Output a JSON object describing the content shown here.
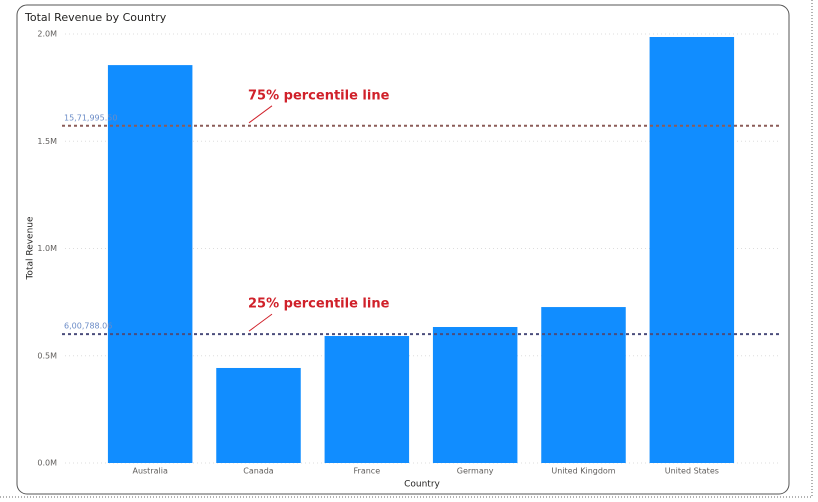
{
  "chart_data": {
    "type": "bar",
    "title": "Total Revenue by Country",
    "x_label": "Country",
    "y_label": "Total Revenue",
    "categories": [
      "Australia",
      "Canada",
      "France",
      "Germany",
      "United Kingdom",
      "United States"
    ],
    "values": [
      1855000,
      443000,
      592000,
      634000,
      727000,
      1986000
    ],
    "color": "#118dff",
    "ylim": [
      0,
      2000000
    ],
    "yticks": [
      {
        "value": 0,
        "label": "0.0M"
      },
      {
        "value": 500000,
        "label": "0.5M"
      },
      {
        "value": 1000000,
        "label": "1.0M"
      },
      {
        "value": 1500000,
        "label": "1.5M"
      },
      {
        "value": 2000000,
        "label": "2.0M"
      }
    ],
    "grid": true,
    "reference_lines": [
      {
        "name": "75% percentile line",
        "value": 1571995.5,
        "value_label": "15,71,995.50",
        "color": "#8b5c58"
      },
      {
        "name": "25% percentile line",
        "value": 600788.06,
        "value_label": "6,00,788.06",
        "color": "#4b4d7c"
      }
    ]
  }
}
